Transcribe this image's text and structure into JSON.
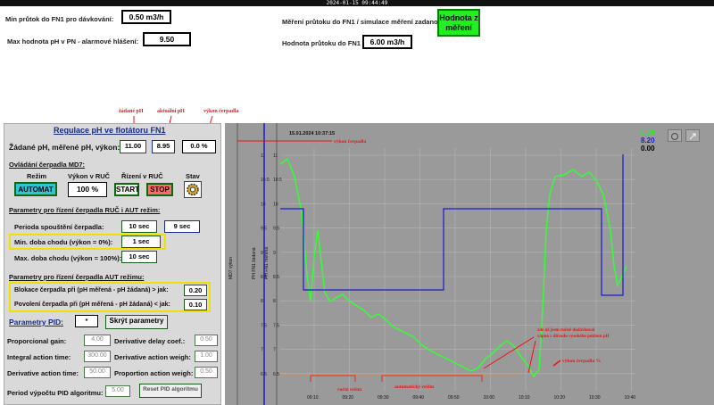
{
  "clock": "2024-01-15 09:44:49",
  "header": {
    "min_flow_label": "Min průtok do FN1 pro dávkování:",
    "min_flow_value": "0.50 m3/h",
    "max_ph_label": "Max hodnota pH v PN - alarmové hlášení:",
    "max_ph_value": "9.50",
    "flow_mode_label": "Měření průtoku do FN1 / simulace měření zadanou hodnotou:",
    "flow_mode_button": "Hodnota z měření",
    "sim_flow_label": "Hodnota průtoku do FN1 při simulaci:",
    "sim_flow_value": "6.00 m3/h"
  },
  "annotations": {
    "setpoint": "žádané pH",
    "actual": "aktuální pH",
    "output": "výkon čerpadla"
  },
  "panel": {
    "title": "Regulace pH ve flotátoru FN1",
    "ph_row_label": "Žádané pH, měřené pH, výkon:",
    "ph_setpoint": "11.00",
    "ph_measured": "8.95",
    "pump_output": "0.0 %",
    "pump_section": "Ovládání čerpadla MD7:",
    "col_mode": "Režim",
    "col_power": "Výkon v RUČ",
    "col_control": "Řízení v RUČ",
    "col_state": "Stav",
    "btn_auto": "AUTOMAT",
    "power_value": "100 %",
    "btn_start": "START",
    "btn_stop": "STOP",
    "params_manual_title": "Parametry pro řízení čerpadla RUČ i AUT režim:",
    "period_label": "Perioda spouštění čerpadla:",
    "period_value": "10 sec",
    "period_actual": "9 sec",
    "min_run_label": "Min. doba chodu (výkon = 0%):",
    "min_run_value": "1 sec",
    "max_run_label": "Max. doba chodu (výkon = 100%):",
    "max_run_value": "10 sec",
    "params_auto_title": "Parametry pro řízení čerpadla AUT režimu:",
    "block_label": "Blokace čerpadla při (pH měřená - pH žádaná) > jak:",
    "block_value": "0.20",
    "allow_label": "Povolení čerpadla při (pH měřená - pH žádaná) < jak:",
    "allow_value": "0.10",
    "pid_label": "Parametry PID:",
    "pid_star": "*",
    "hide_params": "Skrýt parametry",
    "kp_label": "Proporcional gain:",
    "kp_value": "4.00",
    "ti_label": "Integral action time:",
    "ti_value": "300.00",
    "td_label": "Derivative action time:",
    "td_value": "50.00",
    "dd_label": "Derivative delay coef.:",
    "dd_value": "0.50",
    "dw_label": "Derivative action weigh:",
    "dw_value": "1.00",
    "pw_label": "Proportion action weigh:",
    "pw_value": "0.50",
    "period_pid_label": "Period výpočtu PID algoritmu:",
    "period_pid_value": "5.00",
    "reset_pid": "Reset PID algoritmu"
  },
  "chart": {
    "timestamp": "15.01.2024 10:37:15",
    "legend_values": [
      "0.00",
      "8.20",
      "0.00"
    ],
    "legend_colors": [
      "#22ee22",
      "#2222cc",
      "#000000"
    ],
    "y_axis_titles": [
      "MD7 výkon",
      "PH FN1 žádaná",
      "PH FN1 měřená"
    ],
    "y_ticks": [
      "11",
      "10.5",
      "10",
      "9.5",
      "9",
      "8.5",
      "8",
      "7.5",
      "7",
      "6.5"
    ],
    "x_ticks": [
      "09:10",
      "09:20",
      "09:30",
      "09:40",
      "09:50",
      "10:00",
      "10:10",
      "10:20",
      "10:30",
      "10:40"
    ],
    "note_output": "výkon čerpadla",
    "note_manual": "ruční režim",
    "note_auto": "automatický režim",
    "note_manual_reduction": "zde už jsem ručně dodávkoval vápno z důvodu vysokého poklesu pH",
    "note_output_pct": "výkon čerpadla %"
  }
}
